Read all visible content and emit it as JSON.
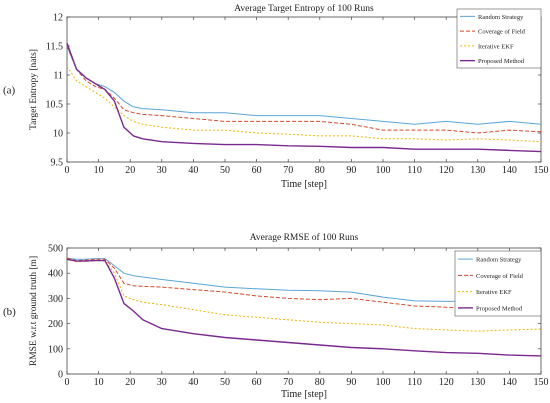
{
  "chart_data": [
    {
      "type": "line",
      "panel_label": "(a)",
      "title": "Average Target Entropy of 100 Runs",
      "xlabel": "Time [step]",
      "ylabel": "Target Entropy [nats]",
      "xlim": [
        0,
        150
      ],
      "ylim": [
        9.5,
        12
      ],
      "xticks": [
        0,
        10,
        20,
        30,
        40,
        50,
        60,
        70,
        80,
        90,
        100,
        110,
        120,
        130,
        140,
        150
      ],
      "yticks": [
        9.5,
        10,
        10.5,
        11,
        11.5,
        12
      ],
      "ytick_labels": [
        "9.5",
        "10",
        "10.5",
        "11",
        "11.5",
        "12"
      ],
      "legend_position": "top-right",
      "grid": false,
      "series": [
        {
          "name": "Random Strategy",
          "color": "#5aa6d6",
          "dash": "solid",
          "x": [
            0,
            3,
            6,
            9,
            12,
            15,
            18,
            21,
            24,
            30,
            40,
            50,
            60,
            70,
            80,
            90,
            100,
            110,
            120,
            130,
            140,
            150
          ],
          "y": [
            11.5,
            11.1,
            10.95,
            10.85,
            10.8,
            10.7,
            10.55,
            10.45,
            10.42,
            10.4,
            10.35,
            10.35,
            10.3,
            10.3,
            10.3,
            10.25,
            10.2,
            10.15,
            10.2,
            10.15,
            10.2,
            10.15
          ]
        },
        {
          "name": "Coverage of Field",
          "color": "#d44a2a",
          "dash": "4,2",
          "x": [
            0,
            3,
            6,
            9,
            12,
            15,
            18,
            21,
            24,
            30,
            40,
            50,
            60,
            70,
            80,
            90,
            100,
            110,
            120,
            130,
            140,
            150
          ],
          "y": [
            11.5,
            11.1,
            10.9,
            10.8,
            10.75,
            10.6,
            10.4,
            10.35,
            10.32,
            10.3,
            10.25,
            10.2,
            10.2,
            10.2,
            10.2,
            10.15,
            10.05,
            10.05,
            10.05,
            10.0,
            10.05,
            10.02
          ]
        },
        {
          "name": "Iterative EKF",
          "color": "#f0b400",
          "dash": "2,2",
          "x": [
            0,
            3,
            6,
            9,
            12,
            15,
            18,
            21,
            24,
            30,
            40,
            50,
            60,
            70,
            80,
            90,
            100,
            110,
            120,
            130,
            140,
            150
          ],
          "y": [
            11.15,
            10.9,
            10.8,
            10.7,
            10.6,
            10.45,
            10.3,
            10.2,
            10.15,
            10.1,
            10.05,
            10.05,
            10.0,
            9.98,
            9.95,
            9.95,
            9.9,
            9.9,
            9.88,
            9.9,
            9.88,
            9.85
          ]
        },
        {
          "name": "Proposed Method",
          "color": "#7a2a8e",
          "dash": "solid",
          "x": [
            0,
            3,
            6,
            9,
            12,
            15,
            18,
            21,
            24,
            30,
            40,
            50,
            60,
            70,
            80,
            90,
            100,
            110,
            120,
            130,
            140,
            150
          ],
          "y": [
            11.55,
            11.1,
            10.95,
            10.85,
            10.75,
            10.55,
            10.1,
            9.95,
            9.9,
            9.85,
            9.82,
            9.8,
            9.8,
            9.78,
            9.77,
            9.75,
            9.75,
            9.72,
            9.72,
            9.72,
            9.7,
            9.68
          ]
        }
      ]
    },
    {
      "type": "line",
      "panel_label": "(b)",
      "title": "Average RMSE of 100 Runs",
      "xlabel": "Time [step]",
      "ylabel": "RMSE w.r.t ground truth [m]",
      "xlim": [
        0,
        150
      ],
      "ylim": [
        0,
        500
      ],
      "xticks": [
        0,
        10,
        20,
        30,
        40,
        50,
        60,
        70,
        80,
        90,
        100,
        110,
        120,
        130,
        140,
        150
      ],
      "yticks": [
        0,
        100,
        200,
        300,
        400,
        500
      ],
      "ytick_labels": [
        "0",
        "100",
        "200",
        "300",
        "400",
        "500"
      ],
      "legend_position": "top-right",
      "grid": false,
      "series": [
        {
          "name": "Random Strategy",
          "color": "#5aa6d6",
          "dash": "solid",
          "x": [
            0,
            3,
            6,
            9,
            12,
            15,
            18,
            21,
            24,
            30,
            40,
            50,
            60,
            70,
            80,
            90,
            100,
            110,
            120,
            130,
            140,
            150
          ],
          "y": [
            460,
            455,
            455,
            458,
            458,
            430,
            400,
            390,
            385,
            375,
            360,
            345,
            338,
            332,
            330,
            325,
            305,
            290,
            288,
            290,
            292,
            300
          ]
        },
        {
          "name": "Coverage of Field",
          "color": "#d44a2a",
          "dash": "4,2",
          "x": [
            0,
            3,
            6,
            9,
            12,
            15,
            18,
            21,
            24,
            30,
            40,
            50,
            60,
            70,
            80,
            90,
            100,
            110,
            120,
            130,
            140,
            150
          ],
          "y": [
            460,
            450,
            452,
            455,
            455,
            420,
            360,
            350,
            348,
            345,
            335,
            325,
            310,
            300,
            295,
            300,
            285,
            270,
            265,
            260,
            265,
            255
          ]
        },
        {
          "name": "Iterative EKF",
          "color": "#f0b400",
          "dash": "2,2",
          "x": [
            0,
            3,
            6,
            9,
            12,
            15,
            18,
            21,
            24,
            30,
            40,
            50,
            60,
            70,
            80,
            90,
            100,
            110,
            120,
            130,
            140,
            150
          ],
          "y": [
            455,
            445,
            448,
            450,
            450,
            400,
            310,
            295,
            285,
            275,
            255,
            235,
            225,
            215,
            205,
            200,
            195,
            180,
            175,
            170,
            175,
            178
          ]
        },
        {
          "name": "Proposed Method",
          "color": "#7a2a8e",
          "dash": "solid",
          "x": [
            0,
            3,
            6,
            9,
            12,
            15,
            18,
            21,
            24,
            30,
            40,
            50,
            60,
            70,
            80,
            90,
            100,
            110,
            120,
            130,
            140,
            150
          ],
          "y": [
            455,
            448,
            448,
            450,
            450,
            380,
            280,
            250,
            215,
            180,
            160,
            145,
            135,
            125,
            115,
            105,
            100,
            92,
            85,
            82,
            75,
            72
          ]
        }
      ]
    }
  ]
}
